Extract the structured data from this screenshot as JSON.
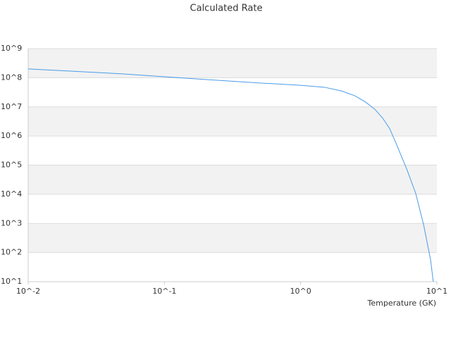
{
  "chart_data": {
    "type": "line",
    "title": "Calculated Rate",
    "x_label": "Temperature (GK)",
    "log_x": true,
    "log_y": true,
    "grid": true,
    "bands": true,
    "xlim": [
      0.01,
      10
    ],
    "ylim": [
      10,
      1000000000
    ],
    "xticks": [
      {
        "value": 0.01,
        "label": "10^-2"
      },
      {
        "value": 0.1,
        "label": "10^-1"
      },
      {
        "value": 1,
        "label": "10^0"
      },
      {
        "value": 10,
        "label": "10^1"
      }
    ],
    "yticks": [
      {
        "value": 10,
        "label": "10^1"
      },
      {
        "value": 100,
        "label": "10^2"
      },
      {
        "value": 1000,
        "label": "10^3"
      },
      {
        "value": 10000,
        "label": "10^4"
      },
      {
        "value": 100000,
        "label": "10^5"
      },
      {
        "value": 1000000,
        "label": "10^6"
      },
      {
        "value": 10000000,
        "label": "10^7"
      },
      {
        "value": 100000000,
        "label": "10^8"
      },
      {
        "value": 1000000000,
        "label": "10^9"
      }
    ],
    "x": [
      0.01,
      0.02,
      0.05,
      0.1,
      0.2,
      0.5,
      1,
      1.5,
      2,
      2.5,
      3,
      3.5,
      4,
      4.5,
      5,
      6,
      7,
      8,
      9,
      9.4
    ],
    "series": [
      {
        "color": "#4a9be8",
        "values": [
          200000000,
          170000000,
          135000000,
          108000000,
          87000000,
          66000000,
          55000000,
          47000000,
          35000000,
          24000000,
          14500000,
          8300000,
          4100000,
          1800000,
          580000,
          74000,
          10500,
          870,
          54,
          10
        ]
      }
    ]
  }
}
